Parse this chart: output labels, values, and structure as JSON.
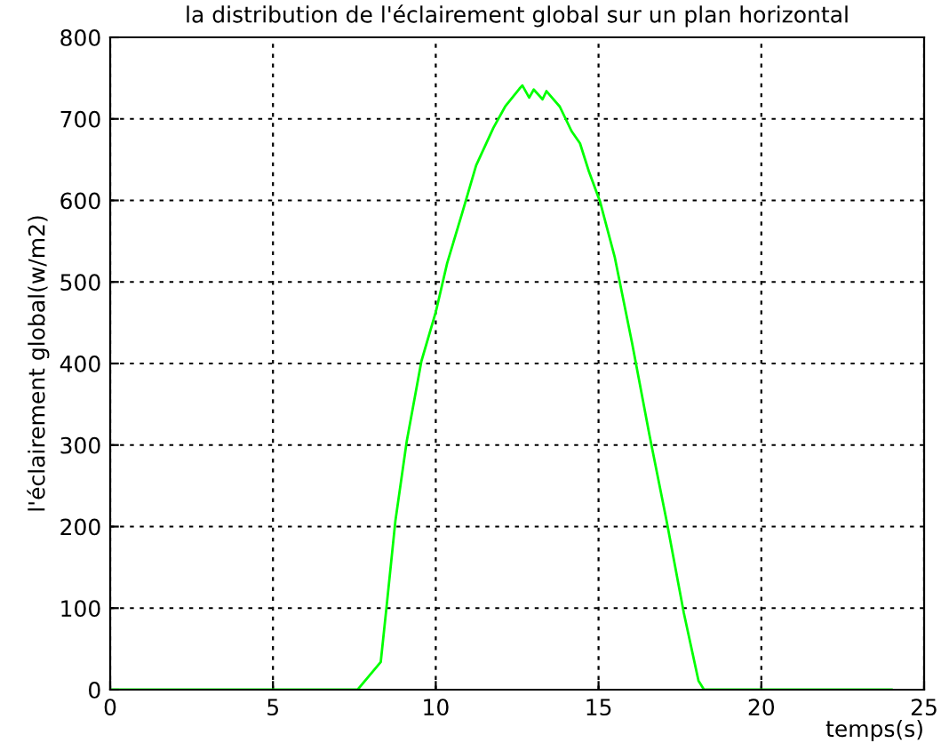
{
  "chart_data": {
    "type": "line",
    "title": "la distribution de l'éclairement global sur un plan horizontal",
    "xlabel": "temps(s)",
    "ylabel": "l'éclairement global(w/m2)",
    "series": [
      {
        "color": "#00ff00",
        "x": [
          0,
          7.6,
          8.31,
          8.49,
          8.76,
          9.11,
          9.56,
          10,
          10.35,
          10.8,
          11.24,
          11.77,
          12.13,
          12.57,
          12.66,
          12.87,
          13.01,
          13.28,
          13.4,
          13.81,
          14.17,
          14.43,
          14.7,
          15.05,
          15.5,
          16.03,
          16.56,
          17.09,
          17.62,
          18.07,
          18.24,
          24
        ],
        "values": [
          0,
          0,
          34,
          102,
          207,
          305,
          403,
          463,
          523,
          583,
          643,
          689,
          715,
          737,
          741,
          726,
          736,
          724,
          734,
          715,
          685,
          670,
          636,
          598,
          530,
          425,
          313,
          207,
          94,
          11,
          0,
          0
        ]
      }
    ],
    "xlim": [
      0,
      25
    ],
    "xticks": [
      0,
      5,
      10,
      15,
      20,
      25
    ],
    "ylim": [
      0,
      800
    ],
    "yticks": [
      0,
      100,
      200,
      300,
      400,
      500,
      600,
      700,
      800
    ],
    "grid": true,
    "line_style": "solid",
    "marker": "none"
  }
}
